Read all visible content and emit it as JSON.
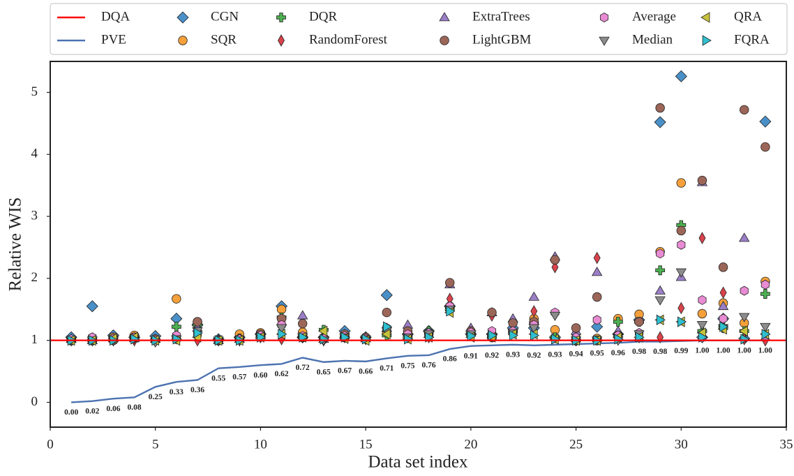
{
  "chart_data": {
    "type": "scatter",
    "xlabel": "Data set index",
    "ylabel": "Relative WIS",
    "x": [
      1,
      2,
      3,
      4,
      5,
      6,
      7,
      8,
      9,
      10,
      11,
      12,
      13,
      14,
      15,
      16,
      17,
      18,
      19,
      20,
      21,
      22,
      23,
      24,
      25,
      26,
      27,
      28,
      29,
      30,
      31,
      32,
      33,
      34
    ],
    "xlim": [
      0,
      35
    ],
    "xticks": [
      0,
      5,
      10,
      15,
      20,
      25,
      30,
      35
    ],
    "ylim": [
      -0.4,
      5.5
    ],
    "yticks": [
      0,
      1,
      2,
      3,
      4,
      5
    ],
    "legend": "top",
    "series": [
      {
        "name": "DQA",
        "type": "hline",
        "color": "#ff0000",
        "value": 1
      },
      {
        "name": "PVE",
        "type": "line",
        "color": "#4c72b0",
        "values": [
          0,
          0.02,
          0.06,
          0.08,
          0.25,
          0.33,
          0.36,
          0.55,
          0.57,
          0.6,
          0.62,
          0.72,
          0.65,
          0.67,
          0.66,
          0.71,
          0.75,
          0.76,
          0.86,
          0.91,
          0.92,
          0.93,
          0.92,
          0.93,
          0.94,
          0.95,
          0.96,
          0.98,
          0.98,
          0.99,
          1,
          1,
          1,
          1
        ],
        "value_labels": [
          "0.00",
          "0.02",
          "0.06",
          "0.08",
          "0.25",
          "0.33",
          "0.36",
          "0.55",
          "0.57",
          "0.60",
          "0.62",
          "0.72",
          "0.65",
          "0.67",
          "0.66",
          "0.71",
          "0.75",
          "0.76",
          "0.86",
          "0.91",
          "0.92",
          "0.93",
          "0.92",
          "0.93",
          "0.94",
          "0.95",
          "0.96",
          "0.98",
          "0.98",
          "0.99",
          "1.00",
          "1.00",
          "1.00",
          "1.00"
        ]
      },
      {
        "name": "CGN",
        "marker": "D",
        "color": "#4a90c8",
        "values": [
          1.05,
          1.55,
          1.08,
          1.05,
          1.07,
          1.35,
          1.25,
          1.02,
          1.05,
          1.1,
          1.55,
          1.05,
          1.05,
          1.15,
          1.05,
          1.73,
          1.1,
          1.15,
          1.55,
          1.1,
          1.1,
          1.2,
          1.2,
          1.05,
          1.0,
          1.22,
          1.1,
          1.33,
          4.52,
          5.26,
          1.05,
          1.35,
          1.03,
          4.53
        ]
      },
      {
        "name": "SQR",
        "marker": "o",
        "color": "#f5a03a",
        "values": [
          1.0,
          1.03,
          1.05,
          1.08,
          1.0,
          1.67,
          1.3,
          1.0,
          1.1,
          1.12,
          1.5,
          1.13,
          1.02,
          1.05,
          1.03,
          1.12,
          1.1,
          1.12,
          1.55,
          1.1,
          1.05,
          1.12,
          1.35,
          1.17,
          1.0,
          1.03,
          1.35,
          1.42,
          2.43,
          3.54,
          1.43,
          1.6,
          1.28,
          1.95
        ]
      },
      {
        "name": "DQR",
        "marker": "P",
        "color": "#4caf50",
        "values": [
          1.0,
          1.0,
          1.02,
          1.03,
          1.0,
          1.22,
          1.25,
          1.0,
          1.03,
          1.08,
          1.37,
          1.05,
          1.17,
          1.05,
          1.03,
          1.08,
          1.05,
          1.15,
          1.5,
          1.1,
          1.05,
          1.15,
          1.28,
          1.05,
          1.0,
          1.0,
          1.3,
          1.3,
          2.13,
          2.86,
          1.15,
          1.2,
          1.15,
          1.75
        ]
      },
      {
        "name": "RandomForest",
        "marker": "d",
        "color": "#d9434b",
        "values": [
          1.0,
          1.0,
          1.0,
          1.0,
          1.0,
          1.05,
          1.0,
          1.0,
          1.0,
          1.05,
          1.02,
          1.05,
          1.0,
          1.05,
          1.02,
          1.15,
          1.05,
          1.05,
          1.67,
          1.15,
          1.4,
          1.25,
          1.47,
          2.18,
          1.15,
          2.33,
          1.05,
          1.05,
          1.05,
          1.52,
          2.65,
          1.77,
          1.02,
          1.0
        ]
      },
      {
        "name": "ExtraTrees",
        "marker": "^",
        "color": "#9b7fc6",
        "values": [
          1.02,
          1.0,
          1.03,
          1.03,
          1.02,
          1.05,
          1.2,
          1.0,
          1.02,
          1.08,
          1.3,
          1.4,
          1.02,
          1.1,
          1.03,
          1.2,
          1.25,
          1.1,
          1.9,
          1.2,
          1.45,
          1.35,
          1.7,
          2.35,
          1.15,
          2.1,
          1.15,
          1.05,
          1.8,
          2.02,
          3.55,
          1.55,
          2.65,
          1.05
        ]
      },
      {
        "name": "LightGBM",
        "marker": "o",
        "color": "#9b6658",
        "values": [
          1.0,
          1.0,
          1.0,
          1.05,
          1.02,
          1.02,
          1.3,
          1.0,
          1.02,
          1.1,
          1.35,
          1.27,
          1.03,
          1.1,
          1.05,
          1.45,
          1.15,
          1.1,
          1.93,
          1.15,
          1.45,
          1.28,
          1.3,
          2.3,
          1.2,
          1.7,
          1.08,
          1.3,
          4.75,
          2.77,
          3.58,
          2.18,
          4.72,
          4.12
        ]
      },
      {
        "name": "Average",
        "marker": "h",
        "color": "#e88bd3",
        "values": [
          1.02,
          1.05,
          1.03,
          1.05,
          1.0,
          1.08,
          1.1,
          1.0,
          1.02,
          1.08,
          1.25,
          1.07,
          1.03,
          1.07,
          1.03,
          1.2,
          1.1,
          1.12,
          1.55,
          1.13,
          1.15,
          1.15,
          1.25,
          1.45,
          1.05,
          1.33,
          1.08,
          1.12,
          2.4,
          2.54,
          1.65,
          1.35,
          1.8,
          1.9
        ]
      },
      {
        "name": "Median",
        "marker": "v",
        "color": "#8c8c8c",
        "values": [
          1.0,
          1.0,
          1.0,
          1.03,
          0.97,
          1.02,
          1.15,
          1.0,
          1.0,
          1.05,
          1.2,
          1.05,
          1.0,
          1.05,
          1.02,
          1.15,
          1.05,
          1.1,
          1.5,
          1.1,
          1.05,
          1.12,
          1.2,
          1.4,
          1.0,
          1.0,
          1.0,
          1.1,
          1.65,
          2.1,
          1.25,
          1.2,
          1.38,
          1.22
        ]
      },
      {
        "name": "QRA",
        "marker": "<",
        "color": "#c8c23a",
        "values": [
          1.0,
          1.0,
          1.03,
          1.05,
          1.0,
          1.0,
          1.05,
          1.0,
          1.0,
          1.05,
          1.1,
          1.05,
          1.15,
          1.03,
          1.0,
          1.1,
          1.02,
          1.05,
          1.45,
          1.05,
          1.05,
          1.1,
          1.1,
          1.02,
          1.0,
          1.0,
          1.05,
          1.05,
          1.33,
          1.3,
          1.12,
          1.18,
          1.15,
          1.1
        ]
      },
      {
        "name": "FQRA",
        "marker": ">",
        "color": "#2fbfcf",
        "values": [
          1.0,
          1.0,
          1.0,
          1.02,
          1.0,
          1.02,
          1.12,
          1.0,
          1.0,
          1.05,
          1.1,
          1.05,
          1.02,
          1.05,
          1.02,
          1.22,
          1.02,
          1.05,
          1.47,
          1.07,
          1.08,
          1.08,
          1.08,
          1.02,
          1.0,
          1.0,
          1.02,
          1.05,
          1.33,
          1.3,
          1.05,
          1.22,
          1.02,
          1.1
        ]
      }
    ]
  }
}
